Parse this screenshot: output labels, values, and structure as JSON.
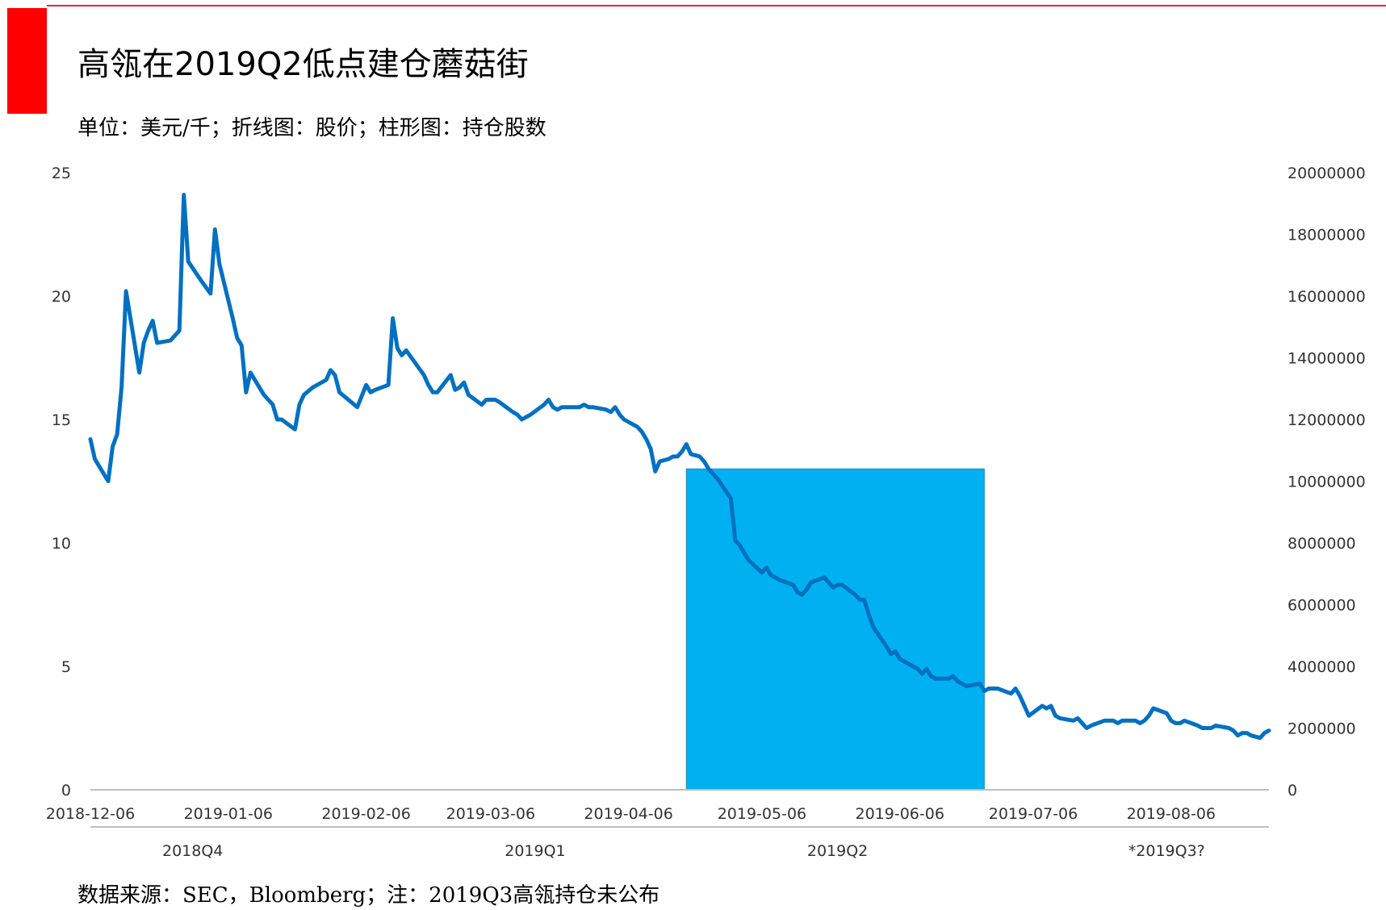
{
  "header": {
    "title": "高瓴在2019Q2低点建仓蘑菇街",
    "subtitle": "单位：美元/千；折线图：股价；柱形图：持仓股数",
    "source": "数据来源：SEC，Bloomberg；注：2019Q3高瓴持仓未公布",
    "accent_color": "#ff0000"
  },
  "chart_data": {
    "type": "line+bar",
    "left_axis": {
      "ylim": [
        0,
        25
      ],
      "ticks": [
        "0",
        "5",
        "10",
        "15",
        "20",
        "25"
      ]
    },
    "right_axis": {
      "ylim": [
        0,
        20000000
      ],
      "ticks": [
        "0",
        "2000000",
        "4000000",
        "6000000",
        "8000000",
        "10000000",
        "12000000",
        "14000000",
        "16000000",
        "18000000",
        "20000000"
      ]
    },
    "x_axis": {
      "range": [
        "2018-12-06",
        "2019-08-28"
      ],
      "ticks": [
        "2018-12-06",
        "2019-01-06",
        "2019-02-06",
        "2019-03-06",
        "2019-04-06",
        "2019-05-06",
        "2019-06-06",
        "2019-07-06",
        "2019-08-06"
      ]
    },
    "quarter_labels": [
      {
        "label": "2018Q4",
        "date": "2018-12-29"
      },
      {
        "label": "2019Q1",
        "date": "2019-03-16"
      },
      {
        "label": "2019Q2",
        "date": "2019-05-23"
      },
      {
        "label": "*2019Q3?",
        "date": "2019-08-05"
      }
    ],
    "bar_series": {
      "color": "#00b0f0",
      "bars": [
        {
          "from": "2019-04-19",
          "to": "2019-06-25",
          "value": 10400000
        }
      ]
    },
    "line_series": {
      "color": "#0070c0",
      "points": [
        [
          "2018-12-06",
          14.2
        ],
        [
          "2018-12-07",
          13.4
        ],
        [
          "2018-12-10",
          12.5
        ],
        [
          "2018-12-11",
          13.9
        ],
        [
          "2018-12-12",
          14.4
        ],
        [
          "2018-12-13",
          16.3
        ],
        [
          "2018-12-14",
          20.2
        ],
        [
          "2018-12-17",
          16.9
        ],
        [
          "2018-12-18",
          18.1
        ],
        [
          "2018-12-19",
          18.6
        ],
        [
          "2018-12-20",
          19.0
        ],
        [
          "2018-12-21",
          18.1
        ],
        [
          "2018-12-24",
          18.2
        ],
        [
          "2018-12-26",
          18.6
        ],
        [
          "2018-12-27",
          24.1
        ],
        [
          "2018-12-28",
          21.4
        ],
        [
          "2018-12-31",
          20.6
        ],
        [
          "2019-01-02",
          20.1
        ],
        [
          "2019-01-03",
          22.7
        ],
        [
          "2019-01-04",
          21.3
        ],
        [
          "2019-01-07",
          19.1
        ],
        [
          "2019-01-08",
          18.3
        ],
        [
          "2019-01-09",
          18.0
        ],
        [
          "2019-01-10",
          16.1
        ],
        [
          "2019-01-11",
          16.9
        ],
        [
          "2019-01-14",
          16.0
        ],
        [
          "2019-01-15",
          15.8
        ],
        [
          "2019-01-16",
          15.6
        ],
        [
          "2019-01-17",
          15.0
        ],
        [
          "2019-01-18",
          15.0
        ],
        [
          "2019-01-21",
          14.6
        ],
        [
          "2019-01-22",
          15.6
        ],
        [
          "2019-01-23",
          16.0
        ],
        [
          "2019-01-25",
          16.3
        ],
        [
          "2019-01-28",
          16.6
        ],
        [
          "2019-01-29",
          17.0
        ],
        [
          "2019-01-30",
          16.8
        ],
        [
          "2019-01-31",
          16.1
        ],
        [
          "2019-02-04",
          15.5
        ],
        [
          "2019-02-06",
          16.4
        ],
        [
          "2019-02-07",
          16.1
        ],
        [
          "2019-02-08",
          16.2
        ],
        [
          "2019-02-11",
          16.4
        ],
        [
          "2019-02-12",
          19.1
        ],
        [
          "2019-02-13",
          17.9
        ],
        [
          "2019-02-14",
          17.6
        ],
        [
          "2019-02-15",
          17.8
        ],
        [
          "2019-02-19",
          16.8
        ],
        [
          "2019-02-20",
          16.4
        ],
        [
          "2019-02-21",
          16.1
        ],
        [
          "2019-02-22",
          16.1
        ],
        [
          "2019-02-25",
          16.8
        ],
        [
          "2019-02-26",
          16.2
        ],
        [
          "2019-02-27",
          16.3
        ],
        [
          "2019-02-28",
          16.5
        ],
        [
          "2019-03-01",
          16.0
        ],
        [
          "2019-03-04",
          15.6
        ],
        [
          "2019-03-05",
          15.8
        ],
        [
          "2019-03-06",
          15.8
        ],
        [
          "2019-03-07",
          15.8
        ],
        [
          "2019-03-08",
          15.7
        ],
        [
          "2019-03-11",
          15.3
        ],
        [
          "2019-03-12",
          15.2
        ],
        [
          "2019-03-13",
          15.0
        ],
        [
          "2019-03-14",
          15.1
        ],
        [
          "2019-03-15",
          15.2
        ],
        [
          "2019-03-18",
          15.6
        ],
        [
          "2019-03-19",
          15.8
        ],
        [
          "2019-03-20",
          15.5
        ],
        [
          "2019-03-21",
          15.4
        ],
        [
          "2019-03-22",
          15.5
        ],
        [
          "2019-03-25",
          15.5
        ],
        [
          "2019-03-26",
          15.5
        ],
        [
          "2019-03-27",
          15.6
        ],
        [
          "2019-03-28",
          15.5
        ],
        [
          "2019-03-29",
          15.5
        ],
        [
          "2019-04-01",
          15.4
        ],
        [
          "2019-04-02",
          15.3
        ],
        [
          "2019-04-03",
          15.5
        ],
        [
          "2019-04-04",
          15.2
        ],
        [
          "2019-04-05",
          15.0
        ],
        [
          "2019-04-08",
          14.7
        ],
        [
          "2019-04-09",
          14.5
        ],
        [
          "2019-04-10",
          14.2
        ],
        [
          "2019-04-11",
          13.8
        ],
        [
          "2019-04-12",
          12.9
        ],
        [
          "2019-04-13",
          13.3
        ],
        [
          "2019-04-15",
          13.4
        ],
        [
          "2019-04-16",
          13.5
        ],
        [
          "2019-04-17",
          13.5
        ],
        [
          "2019-04-18",
          13.7
        ],
        [
          "2019-04-19",
          14.0
        ],
        [
          "2019-04-20",
          13.6
        ],
        [
          "2019-04-22",
          13.5
        ],
        [
          "2019-04-23",
          13.3
        ],
        [
          "2019-04-24",
          13.0
        ],
        [
          "2019-04-25",
          12.8
        ],
        [
          "2019-04-26",
          12.6
        ],
        [
          "2019-04-29",
          11.8
        ],
        [
          "2019-04-30",
          10.1
        ],
        [
          "2019-05-01",
          9.9
        ],
        [
          "2019-05-02",
          9.6
        ],
        [
          "2019-05-03",
          9.3
        ],
        [
          "2019-05-06",
          8.8
        ],
        [
          "2019-05-07",
          9.0
        ],
        [
          "2019-05-08",
          8.7
        ],
        [
          "2019-05-09",
          8.6
        ],
        [
          "2019-05-10",
          8.5
        ],
        [
          "2019-05-13",
          8.3
        ],
        [
          "2019-05-14",
          8.0
        ],
        [
          "2019-05-15",
          7.9
        ],
        [
          "2019-05-16",
          8.1
        ],
        [
          "2019-05-17",
          8.4
        ],
        [
          "2019-05-20",
          8.6
        ],
        [
          "2019-05-21",
          8.4
        ],
        [
          "2019-05-22",
          8.2
        ],
        [
          "2019-05-23",
          8.3
        ],
        [
          "2019-05-24",
          8.3
        ],
        [
          "2019-05-27",
          7.9
        ],
        [
          "2019-05-28",
          7.7
        ],
        [
          "2019-05-29",
          7.7
        ],
        [
          "2019-05-30",
          7.1
        ],
        [
          "2019-05-31",
          6.6
        ],
        [
          "2019-06-03",
          5.8
        ],
        [
          "2019-06-04",
          5.5
        ],
        [
          "2019-06-05",
          5.6
        ],
        [
          "2019-06-06",
          5.3
        ],
        [
          "2019-06-07",
          5.2
        ],
        [
          "2019-06-10",
          4.9
        ],
        [
          "2019-06-11",
          4.7
        ],
        [
          "2019-06-12",
          4.9
        ],
        [
          "2019-06-13",
          4.6
        ],
        [
          "2019-06-14",
          4.5
        ],
        [
          "2019-06-17",
          4.5
        ],
        [
          "2019-06-18",
          4.6
        ],
        [
          "2019-06-19",
          4.4
        ],
        [
          "2019-06-20",
          4.3
        ],
        [
          "2019-06-21",
          4.2
        ],
        [
          "2019-06-24",
          4.3
        ],
        [
          "2019-06-25",
          4.0
        ],
        [
          "2019-06-26",
          4.1
        ],
        [
          "2019-06-27",
          4.1
        ],
        [
          "2019-06-28",
          4.1
        ],
        [
          "2019-07-01",
          3.9
        ],
        [
          "2019-07-02",
          4.1
        ],
        [
          "2019-07-03",
          3.8
        ],
        [
          "2019-07-05",
          3.0
        ],
        [
          "2019-07-08",
          3.4
        ],
        [
          "2019-07-09",
          3.3
        ],
        [
          "2019-07-10",
          3.4
        ],
        [
          "2019-07-11",
          3.0
        ],
        [
          "2019-07-12",
          2.9
        ],
        [
          "2019-07-15",
          2.8
        ],
        [
          "2019-07-16",
          2.9
        ],
        [
          "2019-07-17",
          2.7
        ],
        [
          "2019-07-18",
          2.5
        ],
        [
          "2019-07-19",
          2.6
        ],
        [
          "2019-07-22",
          2.8
        ],
        [
          "2019-07-23",
          2.8
        ],
        [
          "2019-07-24",
          2.8
        ],
        [
          "2019-07-25",
          2.7
        ],
        [
          "2019-07-26",
          2.8
        ],
        [
          "2019-07-29",
          2.8
        ],
        [
          "2019-07-30",
          2.7
        ],
        [
          "2019-07-31",
          2.8
        ],
        [
          "2019-08-01",
          3.0
        ],
        [
          "2019-08-02",
          3.3
        ],
        [
          "2019-08-05",
          3.1
        ],
        [
          "2019-08-06",
          2.8
        ],
        [
          "2019-08-07",
          2.7
        ],
        [
          "2019-08-08",
          2.7
        ],
        [
          "2019-08-09",
          2.8
        ],
        [
          "2019-08-12",
          2.6
        ],
        [
          "2019-08-13",
          2.5
        ],
        [
          "2019-08-14",
          2.5
        ],
        [
          "2019-08-15",
          2.5
        ],
        [
          "2019-08-16",
          2.6
        ],
        [
          "2019-08-19",
          2.5
        ],
        [
          "2019-08-20",
          2.4
        ],
        [
          "2019-08-21",
          2.2
        ],
        [
          "2019-08-22",
          2.3
        ],
        [
          "2019-08-23",
          2.3
        ],
        [
          "2019-08-24",
          2.2
        ],
        [
          "2019-08-26",
          2.1
        ],
        [
          "2019-08-27",
          2.3
        ],
        [
          "2019-08-28",
          2.4
        ]
      ]
    }
  }
}
